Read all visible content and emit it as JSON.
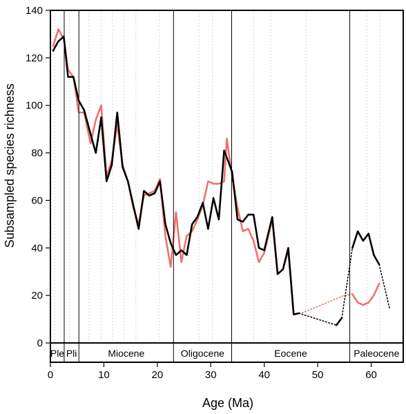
{
  "chart_data": {
    "type": "line",
    "xlabel": "Age (Ma)",
    "ylabel": "Subsampled species richness",
    "xlim": [
      0,
      66
    ],
    "ylim": [
      0,
      140
    ],
    "x_ticks": [
      0,
      10,
      20,
      30,
      40,
      50,
      60
    ],
    "y_ticks": [
      0,
      20,
      40,
      60,
      80,
      100,
      120,
      140
    ],
    "grid": "dotted vertical lines",
    "colors": {
      "black_series": "#000000",
      "red_series": "#f07070",
      "boundary": "#000000",
      "grid": "#c8c8c8"
    },
    "epoch_boundaries": [
      2.58,
      5.33,
      23.03,
      33.9,
      56.0
    ],
    "epochs": [
      {
        "label": "Ple",
        "start": 0,
        "end": 2.58
      },
      {
        "label": "Pli",
        "start": 2.58,
        "end": 5.33
      },
      {
        "label": "Miocene",
        "start": 5.33,
        "end": 23.03
      },
      {
        "label": "Oligocene",
        "start": 23.03,
        "end": 33.9
      },
      {
        "label": "Eocene",
        "start": 33.9,
        "end": 56.0
      },
      {
        "label": "Paleocene",
        "start": 56.0,
        "end": 66
      }
    ],
    "series": [
      {
        "values": [
          [
            46.5,
            12.5
          ],
          [
            47.5,
            13
          ],
          [
            55,
            20
          ],
          [
            56.5,
            20.5
          ]
        ],
        "color": "#f07070",
        "style": "dotted"
      },
      {
        "values": [
          [
            0.5,
            125
          ],
          [
            1.5,
            132
          ],
          [
            2.5,
            128
          ],
          [
            3.3,
            115
          ],
          [
            4.3,
            112
          ],
          [
            5.3,
            97
          ],
          [
            6.3,
            97
          ],
          [
            7.5,
            84
          ],
          [
            8.5,
            94
          ],
          [
            9.5,
            100
          ],
          [
            10.5,
            70
          ],
          [
            11.5,
            77
          ],
          [
            12.5,
            92
          ],
          [
            13.5,
            75
          ],
          [
            14.5,
            68
          ],
          [
            15.5,
            57
          ],
          [
            16.5,
            50
          ],
          [
            17.5,
            62
          ],
          [
            18.5,
            63
          ],
          [
            19.5,
            64
          ],
          [
            20.5,
            69
          ],
          [
            21.5,
            45
          ],
          [
            22.5,
            32
          ],
          [
            23.5,
            55
          ],
          [
            24.5,
            34
          ],
          [
            25.5,
            45
          ],
          [
            26.5,
            47
          ],
          [
            27.5,
            52
          ],
          [
            28.5,
            58
          ],
          [
            29.5,
            68
          ],
          [
            30.5,
            67
          ],
          [
            31.5,
            67
          ],
          [
            32.5,
            68
          ],
          [
            33,
            86
          ],
          [
            34,
            70
          ],
          [
            35,
            57
          ],
          [
            36,
            47
          ],
          [
            37,
            48
          ],
          [
            38,
            43
          ],
          [
            39,
            34
          ],
          [
            40,
            38
          ],
          [
            41.5,
            52
          ],
          [
            42.5,
            29
          ],
          [
            43.5,
            31
          ],
          [
            44.5,
            39
          ],
          [
            45.5,
            12
          ],
          [
            46.5,
            12.5
          ]
        ],
        "color": "#f07070",
        "style": "solid"
      },
      {
        "values": [
          [
            56.5,
            20.5
          ],
          [
            57.5,
            17
          ],
          [
            58.5,
            16
          ],
          [
            59.5,
            17
          ],
          [
            60.5,
            20
          ],
          [
            61.5,
            25
          ]
        ],
        "color": "#f07070",
        "style": "solid"
      },
      {
        "values": [
          [
            0.5,
            123
          ],
          [
            1.5,
            127
          ],
          [
            2.5,
            129
          ],
          [
            3.3,
            112
          ],
          [
            4.3,
            112
          ],
          [
            5.3,
            102
          ],
          [
            6.3,
            98
          ],
          [
            7.5,
            88
          ],
          [
            8.5,
            80
          ],
          [
            9.5,
            95
          ],
          [
            10.5,
            68
          ],
          [
            11.5,
            75
          ],
          [
            12.5,
            97
          ],
          [
            13.5,
            74
          ],
          [
            14.5,
            68
          ],
          [
            15.5,
            58
          ],
          [
            16.5,
            48
          ],
          [
            17.5,
            64
          ],
          [
            18.5,
            62
          ],
          [
            19.5,
            63
          ],
          [
            20.5,
            68
          ],
          [
            21.5,
            50
          ],
          [
            22.5,
            42
          ],
          [
            23.5,
            37
          ],
          [
            24.5,
            39
          ],
          [
            25.5,
            37
          ],
          [
            26.5,
            50
          ],
          [
            27.5,
            53
          ],
          [
            28.5,
            59
          ],
          [
            29.5,
            48
          ],
          [
            30.5,
            61
          ],
          [
            31.5,
            52
          ],
          [
            32.5,
            81
          ],
          [
            34,
            72
          ],
          [
            35,
            52
          ],
          [
            36,
            51
          ],
          [
            37,
            54
          ],
          [
            38,
            54
          ],
          [
            39,
            40
          ],
          [
            40,
            39
          ],
          [
            41.5,
            53
          ],
          [
            42.5,
            29
          ],
          [
            43.5,
            31
          ],
          [
            44.5,
            40
          ],
          [
            45.5,
            12
          ],
          [
            46.5,
            12.5
          ]
        ],
        "color": "#000000",
        "style": "solid"
      },
      {
        "values": [
          [
            46.5,
            12.5
          ],
          [
            53.5,
            7.5
          ]
        ],
        "color": "#000000",
        "style": "dotted"
      },
      {
        "values": [
          [
            53.5,
            7.5
          ],
          [
            54.5,
            10.5
          ]
        ],
        "color": "#000000",
        "style": "solid"
      },
      {
        "values": [
          [
            54.5,
            10.5
          ],
          [
            56.5,
            40
          ]
        ],
        "color": "#000000",
        "style": "dotted"
      },
      {
        "values": [
          [
            56.5,
            40
          ],
          [
            57.5,
            47
          ],
          [
            58.5,
            43
          ],
          [
            59.5,
            46
          ],
          [
            60.5,
            37
          ],
          [
            61.5,
            33
          ]
        ],
        "color": "#000000",
        "style": "solid"
      },
      {
        "values": [
          [
            61.5,
            33
          ],
          [
            63.5,
            14
          ]
        ],
        "color": "#000000",
        "style": "dotted"
      }
    ]
  }
}
